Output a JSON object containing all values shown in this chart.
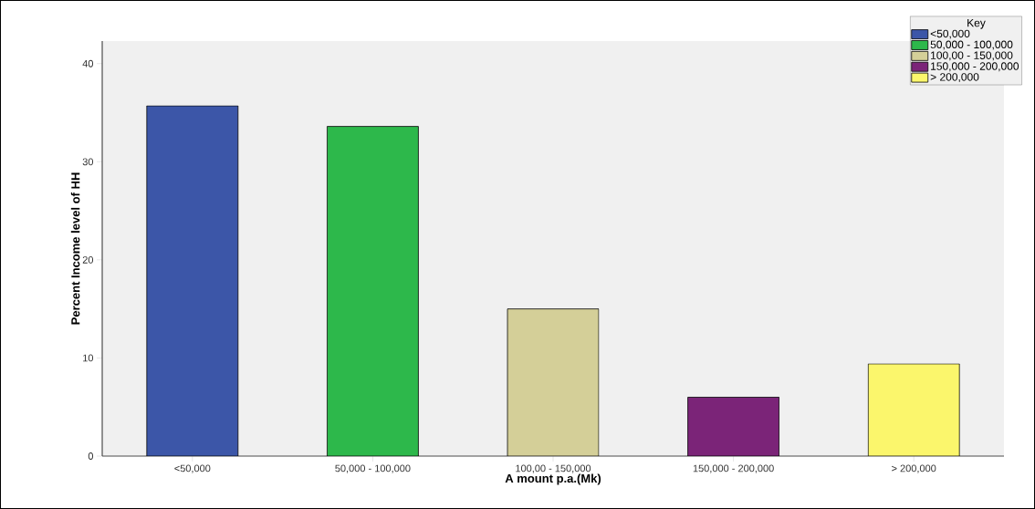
{
  "chart_data": {
    "type": "bar",
    "xlabel": "A mount p.a.(Mk)",
    "ylabel": "Percent Income level of HH",
    "categories": [
      "<50,000",
      "50,000 - 100,000",
      "100,00 - 150,000",
      "150,000 - 200,000",
      "> 200,000"
    ],
    "series": [
      {
        "name": "<50,000",
        "color": "#3c56a8",
        "values": [
          35.7,
          null,
          null,
          null,
          null
        ]
      },
      {
        "name": "50,000 - 100,000",
        "color": "#2db84b",
        "values": [
          null,
          33.6,
          null,
          null,
          null
        ]
      },
      {
        "name": "100,00 - 150,000",
        "color": "#d4cf98",
        "values": [
          null,
          null,
          15.0,
          null,
          null
        ]
      },
      {
        "name": "150,000 - 200,000",
        "color": "#7b2478",
        "values": [
          null,
          null,
          null,
          6.0,
          null
        ]
      },
      {
        "name": "> 200,000",
        "color": "#fbf66c",
        "values": [
          null,
          null,
          null,
          null,
          9.4
        ]
      }
    ],
    "ylim": [
      0,
      42.3
    ],
    "yticks": [
      0,
      10,
      20,
      30,
      40
    ],
    "legend": "top right",
    "legend_title": "Key"
  }
}
